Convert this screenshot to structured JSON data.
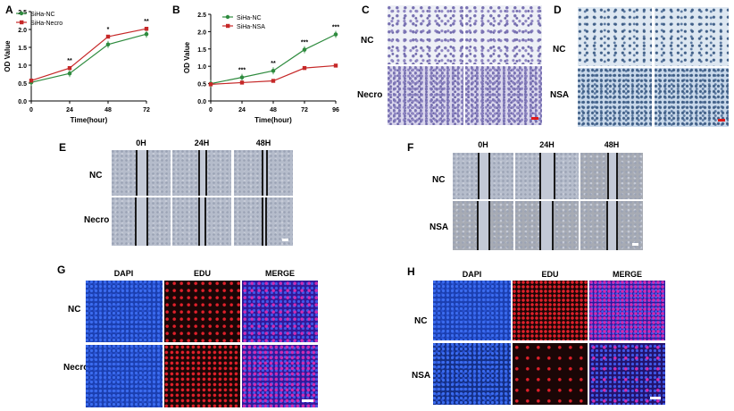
{
  "panels": {
    "A": {
      "label": "A"
    },
    "B": {
      "label": "B"
    },
    "C": {
      "label": "C",
      "rows": [
        "NC",
        "Necro"
      ]
    },
    "D": {
      "label": "D",
      "rows": [
        "NC",
        "NSA"
      ]
    },
    "E": {
      "label": "E",
      "cols": [
        "0H",
        "24H",
        "48H"
      ],
      "rows": [
        "NC",
        "Necro"
      ]
    },
    "F": {
      "label": "F",
      "cols": [
        "0H",
        "24H",
        "48H"
      ],
      "rows": [
        "NC",
        "NSA"
      ]
    },
    "G": {
      "label": "G",
      "cols": [
        "DAPI",
        "EDU",
        "MERGE"
      ],
      "rows": [
        "NC",
        "Necro"
      ]
    },
    "H": {
      "label": "H",
      "cols": [
        "DAPI",
        "EDU",
        "MERGE"
      ],
      "rows": [
        "NC",
        "NSA"
      ]
    }
  },
  "colors": {
    "green": "#2e8b3e",
    "red": "#c62828",
    "scale_red": "#e01818",
    "scale_white": "#ffffff"
  },
  "chart_data": [
    {
      "id": "A",
      "type": "line",
      "x": [
        0,
        24,
        48,
        72
      ],
      "xticks": [
        "0",
        "24",
        "48",
        "72"
      ],
      "yticks": [
        "0.0",
        "0.5",
        "1.0",
        "1.5",
        "2.0",
        "2.5"
      ],
      "ylim": [
        0,
        2.5
      ],
      "xlabel": "Time(hour)",
      "ylabel": "OD Value",
      "legend": "top-left",
      "series": [
        {
          "name": "SiHa-NC",
          "color": "green",
          "values": [
            0.52,
            0.77,
            1.58,
            1.87
          ]
        },
        {
          "name": "SiHa-Necro",
          "color": "red",
          "values": [
            0.57,
            0.92,
            1.8,
            2.02
          ]
        }
      ],
      "annotations": [
        "",
        "**",
        "*",
        "**"
      ]
    },
    {
      "id": "B",
      "type": "line",
      "x": [
        0,
        24,
        48,
        72,
        96
      ],
      "xticks": [
        "0",
        "24",
        "48",
        "72",
        "96"
      ],
      "yticks": [
        "0.0",
        "0.5",
        "1.0",
        "1.5",
        "2.0",
        "2.5"
      ],
      "ylim": [
        0,
        2.5
      ],
      "xlabel": "Time(hour)",
      "ylabel": "OD Value",
      "legend": "top-left",
      "series": [
        {
          "name": "SiHa-NC",
          "color": "green",
          "values": [
            0.5,
            0.68,
            0.87,
            1.48,
            1.92
          ]
        },
        {
          "name": "SiHa-NSA",
          "color": "red",
          "values": [
            0.48,
            0.53,
            0.58,
            0.95,
            1.02
          ]
        }
      ],
      "annotations": [
        "",
        "***",
        "**",
        "***",
        "***"
      ]
    }
  ]
}
